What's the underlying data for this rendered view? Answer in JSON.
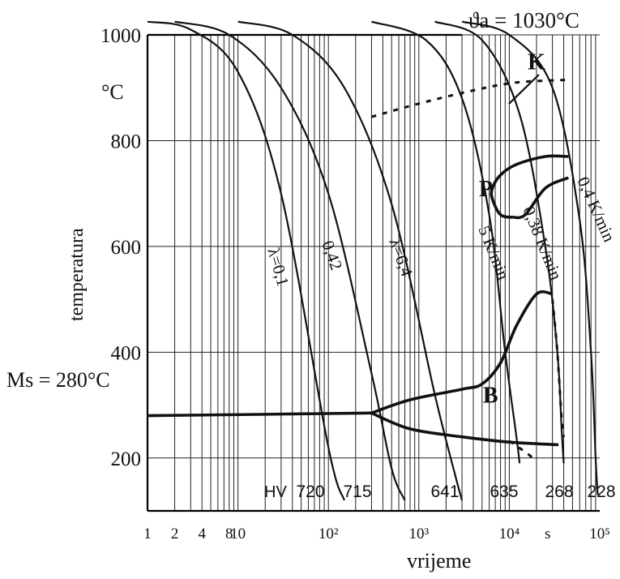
{
  "chart_data": {
    "type": "line",
    "xscale": "log",
    "xlim": [
      1,
      100000
    ],
    "ylim": [
      100,
      1000
    ],
    "xlabel": "vrijeme",
    "xunit": "s",
    "ylabel": "temperatura",
    "yunit": "°C",
    "austenitizing_label": "ϑa = 1030°C",
    "ms_label": "Ms = 280°C",
    "ms_temperature": 280,
    "x_ticks": [
      {
        "label": "1",
        "value": 1
      },
      {
        "label": "2",
        "value": 2
      },
      {
        "label": "4",
        "value": 4
      },
      {
        "label": "8",
        "value": 8
      },
      {
        "label": "10",
        "value": 10
      },
      {
        "label": "10²",
        "value": 100
      },
      {
        "label": "10³",
        "value": 1000
      },
      {
        "label": "10⁴",
        "value": 10000
      },
      {
        "label": "10⁵",
        "value": 100000
      }
    ],
    "y_ticks": [
      {
        "label": "1000",
        "value": 1000
      },
      {
        "label": "800",
        "value": 800
      },
      {
        "label": "600",
        "value": 600
      },
      {
        "label": "400",
        "value": 400
      },
      {
        "label": "200",
        "value": 200
      }
    ],
    "region_labels": [
      {
        "name": "K",
        "x": 20000,
        "y": 935
      },
      {
        "name": "P",
        "x": 5500,
        "y": 695
      },
      {
        "name": "B",
        "x": 6200,
        "y": 305
      }
    ],
    "hardness": {
      "prefix": "HV",
      "values": [
        "720",
        "715",
        "641",
        "635",
        "268",
        "228"
      ]
    },
    "cooling_curves": [
      {
        "label": "λ=0,1",
        "points": [
          [
            1,
            1025
          ],
          [
            3,
            1010
          ],
          [
            10,
            930
          ],
          [
            30,
            700
          ],
          [
            100,
            220
          ],
          [
            150,
            120
          ]
        ]
      },
      {
        "label": "0,42",
        "points": [
          [
            2,
            1025
          ],
          [
            8,
            1000
          ],
          [
            30,
            900
          ],
          [
            100,
            700
          ],
          [
            300,
            360
          ],
          [
            500,
            180
          ],
          [
            700,
            120
          ]
        ]
      },
      {
        "label": "λ=6,4",
        "points": [
          [
            10,
            1025
          ],
          [
            40,
            1000
          ],
          [
            150,
            900
          ],
          [
            500,
            680
          ],
          [
            1500,
            320
          ],
          [
            2500,
            170
          ],
          [
            3000,
            120
          ]
        ]
      },
      {
        "label": "5 K/min",
        "points": [
          [
            300,
            1025
          ],
          [
            1200,
            990
          ],
          [
            3000,
            880
          ],
          [
            6000,
            660
          ],
          [
            9000,
            400
          ],
          [
            12000,
            240
          ],
          [
            13000,
            190
          ]
        ]
      },
      {
        "label": "0,38 K/min",
        "points": [
          [
            1500,
            1025
          ],
          [
            5000,
            990
          ],
          [
            13000,
            850
          ],
          [
            25000,
            600
          ],
          [
            34000,
            400
          ],
          [
            38000,
            250
          ],
          [
            40000,
            190
          ]
        ]
      },
      {
        "label": "0,4 K/min",
        "points": [
          [
            3000,
            1025
          ],
          [
            10000,
            1000
          ],
          [
            30000,
            900
          ],
          [
            60000,
            650
          ],
          [
            80000,
            400
          ],
          [
            90000,
            200
          ],
          [
            95000,
            130
          ]
        ]
      }
    ],
    "bold_curves": [
      {
        "name": "pearlite-start",
        "points": [
          [
            45000,
            770
          ],
          [
            25000,
            770
          ],
          [
            12000,
            755
          ],
          [
            8000,
            735
          ],
          [
            6500,
            710
          ],
          [
            6500,
            690
          ],
          [
            8000,
            660
          ],
          [
            11000,
            655
          ]
        ]
      },
      {
        "name": "pearlite-finish",
        "points": [
          [
            11000,
            655
          ],
          [
            15000,
            660
          ],
          [
            25000,
            710
          ],
          [
            45000,
            730
          ]
        ]
      },
      {
        "name": "bainite-start",
        "points": [
          [
            300,
            285
          ],
          [
            800,
            310
          ],
          [
            3000,
            330
          ],
          [
            5000,
            340
          ],
          [
            8000,
            380
          ],
          [
            12000,
            450
          ],
          [
            20000,
            510
          ],
          [
            30000,
            510
          ]
        ]
      },
      {
        "name": "bainite-finish",
        "points": [
          [
            300,
            285
          ],
          [
            800,
            255
          ],
          [
            3000,
            240
          ],
          [
            10000,
            230
          ],
          [
            35000,
            225
          ]
        ]
      },
      {
        "name": "ms-line",
        "points": [
          [
            1,
            280
          ],
          [
            300,
            285
          ]
        ]
      }
    ],
    "dashed_curves": [
      {
        "name": "carbide-precipitation",
        "points": [
          [
            300,
            845
          ],
          [
            1000,
            870
          ],
          [
            4000,
            895
          ],
          [
            12000,
            910
          ],
          [
            45000,
            915
          ]
        ]
      },
      {
        "name": "bainite-extension",
        "points": [
          [
            30000,
            500
          ],
          [
            34000,
            400
          ],
          [
            38000,
            270
          ],
          [
            40000,
            240
          ]
        ]
      },
      {
        "name": "bainite-finish-dashed",
        "points": [
          [
            10000,
            232
          ],
          [
            14000,
            215
          ],
          [
            20000,
            195
          ]
        ]
      }
    ]
  }
}
